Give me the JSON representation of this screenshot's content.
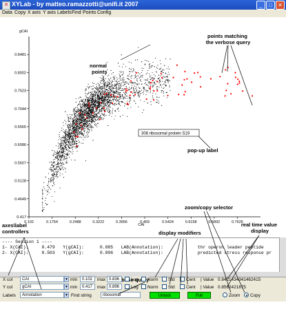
{
  "window": {
    "title": "XYLab - by matteo.ramazzotti@unifi.it 2007",
    "icon": "app-icon"
  },
  "menu": [
    "Data",
    "Copy",
    "X axis",
    "Y axis",
    "Labels",
    "Find",
    "Points",
    "Config"
  ],
  "chart_data": {
    "type": "scatter",
    "xlabel": "CAI",
    "ylabel": "gCAI",
    "x_ticks": [
      "0.102",
      "0.1754",
      "0.2488",
      "0.3222",
      "0.3956",
      "0.469",
      "0.5424",
      "0.6158",
      "0.6892",
      "0.7626"
    ],
    "y_ticks": [
      "0.417",
      "0.4649",
      "0.5128",
      "0.5607",
      "0.6086",
      "0.6565",
      "0.7044",
      "0.7523",
      "0.8002",
      "0.8481"
    ],
    "xlim": [
      0.102,
      0.836
    ],
    "ylim": [
      0.417,
      0.896
    ],
    "series": [
      {
        "color": "#000000",
        "count": 4200
      },
      {
        "color": "#ff0000",
        "count": 75
      }
    ],
    "popup_label": "308 ribosomal protein S19"
  },
  "annotations": {
    "normal_points": "normal\npoints",
    "points_matching": "points matching\nthe verbose query",
    "popup": "pop-up label",
    "zoom_copy": "zoom/copy selector",
    "axes_label": "axes\\label\ncontrollers",
    "display_mod": "display modifiers",
    "real_time": "real time value\ndisplay",
    "verbose": "verbose query"
  },
  "console": {
    "lines": [
      "---- Session 1 ----",
      "1- X(CAI):     0.479   Y(gCAI):      0.885   LAB(Annotation):             thr operon leader peptide",
      "2- X(CAI):     0.503   Y(gCAI):      0.896   LAB(Annotation):             predicted stress response pr"
    ]
  },
  "controls": {
    "xcol": {
      "label": "X col",
      "value": "CAI",
      "min_label": "min",
      "min": "0.102",
      "max_label": "max",
      "max": "0.836"
    },
    "ycol": {
      "label": "Y col",
      "value": "gCAI",
      "min_label": "min",
      "min": "0.417",
      "max_label": "max",
      "max": "0.896"
    },
    "labels": {
      "label": "Labels",
      "value": "Annotation"
    },
    "find": {
      "label": "Find string",
      "value": "ribosomal"
    },
    "modifiers": {
      "log": "Log",
      "norm": "Norm",
      "std": "Std",
      "cent": "Cent"
    },
    "xvalue": {
      "label": "Value",
      "value": "0.8421434341462415"
    },
    "yvalue": {
      "label": "Value",
      "value": "0.8562421875"
    },
    "unlock": "Unlock",
    "full": "Full",
    "zoom": "Zoom",
    "copy": "Copy"
  }
}
